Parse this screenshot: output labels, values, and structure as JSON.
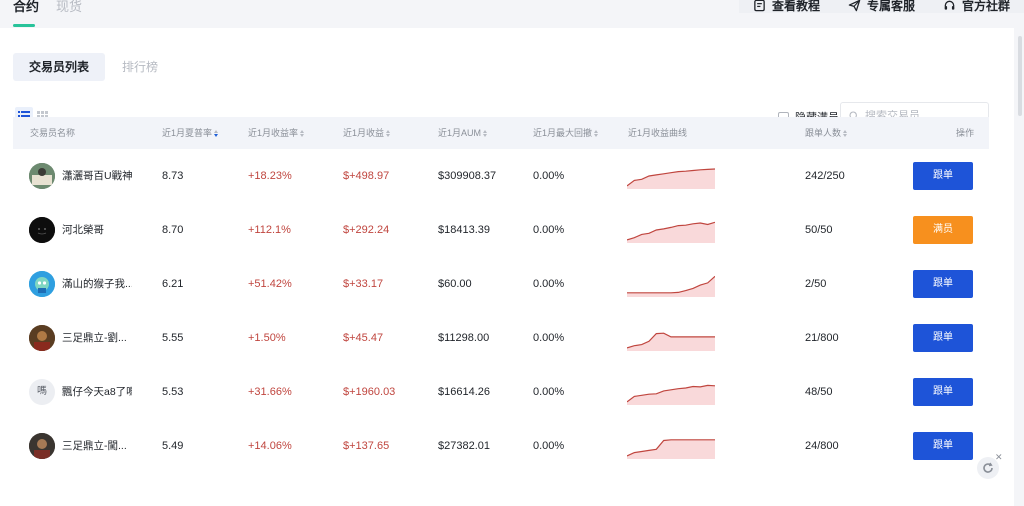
{
  "top": {
    "tabs": [
      {
        "label": "合约",
        "active": true
      },
      {
        "label": "现货",
        "active": false
      }
    ],
    "links": [
      {
        "label": "查看教程",
        "icon": "document-icon"
      },
      {
        "label": "专属客服",
        "icon": "send-icon"
      },
      {
        "label": "官方社群",
        "icon": "headset-icon"
      }
    ]
  },
  "subtabs": [
    {
      "label": "交易员列表",
      "active": true
    },
    {
      "label": "排行榜",
      "active": false
    }
  ],
  "filters": {
    "hide_full_label": "隐藏满员",
    "hide_full_checked": false,
    "search_placeholder": "搜索交易员",
    "view_mode": "list"
  },
  "table": {
    "headers": {
      "name": "交易员名称",
      "sharpe": "近1月夏普率",
      "yield": "近1月收益率",
      "profit": "近1月收益",
      "aum": "近1月AUM",
      "drawdown": "近1月最大回撤",
      "curve": "近1月收益曲线",
      "followers": "跟单人数",
      "action": "操作"
    },
    "rows": [
      {
        "name": "瀟灑哥百U戰神",
        "sharpe": "8.73",
        "yield": "+18.23%",
        "profit": "$+498.97",
        "aum": "$309908.37",
        "drawdown": "0.00%",
        "followers": "242/250",
        "button": "跟单",
        "button_state": "follow",
        "avatar": "avatar-photo",
        "curve": [
          0.05,
          0.3,
          0.35,
          0.5,
          0.55,
          0.6,
          0.65,
          0.7,
          0.72,
          0.75,
          0.78,
          0.8,
          0.82
        ]
      },
      {
        "name": "河北榮哥",
        "sharpe": "8.70",
        "yield": "+112.1%",
        "profit": "$+292.24",
        "aum": "$18413.39",
        "drawdown": "0.00%",
        "followers": "50/50",
        "button": "满员",
        "button_state": "full",
        "avatar": "avatar-dark",
        "curve": [
          0.05,
          0.15,
          0.3,
          0.35,
          0.5,
          0.55,
          0.62,
          0.7,
          0.72,
          0.78,
          0.82,
          0.75,
          0.85
        ]
      },
      {
        "name": "滿山的猴子我...",
        "sharpe": "6.21",
        "yield": "+51.42%",
        "profit": "$+33.17",
        "aum": "$60.00",
        "drawdown": "0.00%",
        "followers": "2/50",
        "button": "跟单",
        "button_state": "follow",
        "avatar": "avatar-cartoon",
        "curve": [
          0.1,
          0.1,
          0.1,
          0.1,
          0.1,
          0.1,
          0.1,
          0.12,
          0.2,
          0.3,
          0.45,
          0.55,
          0.85
        ]
      },
      {
        "name": "三足鼎立-劉...",
        "sharpe": "5.55",
        "yield": "+1.50%",
        "profit": "$+45.47",
        "aum": "$11298.00",
        "drawdown": "0.00%",
        "followers": "21/800",
        "button": "跟单",
        "button_state": "follow",
        "avatar": "avatar-photo-2",
        "curve": [
          0.05,
          0.15,
          0.2,
          0.35,
          0.7,
          0.72,
          0.55,
          0.55,
          0.55,
          0.55,
          0.55,
          0.55,
          0.55
        ]
      },
      {
        "name": "飄仔今天a8了嗎",
        "sharpe": "5.53",
        "yield": "+31.66%",
        "profit": "$+1960.03",
        "aum": "$16614.26",
        "drawdown": "0.00%",
        "followers": "48/50",
        "button": "跟单",
        "button_state": "follow",
        "avatar": "avatar-text",
        "avatar_text": "嗎",
        "curve": [
          0.05,
          0.3,
          0.35,
          0.4,
          0.42,
          0.55,
          0.6,
          0.65,
          0.68,
          0.75,
          0.73,
          0.8,
          0.78
        ]
      },
      {
        "name": "三足鼎立-闖...",
        "sharpe": "5.49",
        "yield": "+14.06%",
        "profit": "$+137.65",
        "aum": "$27382.01",
        "drawdown": "0.00%",
        "followers": "24/800",
        "button": "跟单",
        "button_state": "follow",
        "avatar": "avatar-photo-3",
        "curve": [
          0.05,
          0.2,
          0.25,
          0.3,
          0.35,
          0.75,
          0.78,
          0.78,
          0.78,
          0.78,
          0.78,
          0.78,
          0.78
        ]
      }
    ]
  },
  "colors": {
    "accent_green": "#28c39a",
    "follow_blue": "#1e54d8",
    "full_orange": "#f7901e",
    "profit_red": "#c0463f",
    "curve_fill": "#f9d9da"
  }
}
